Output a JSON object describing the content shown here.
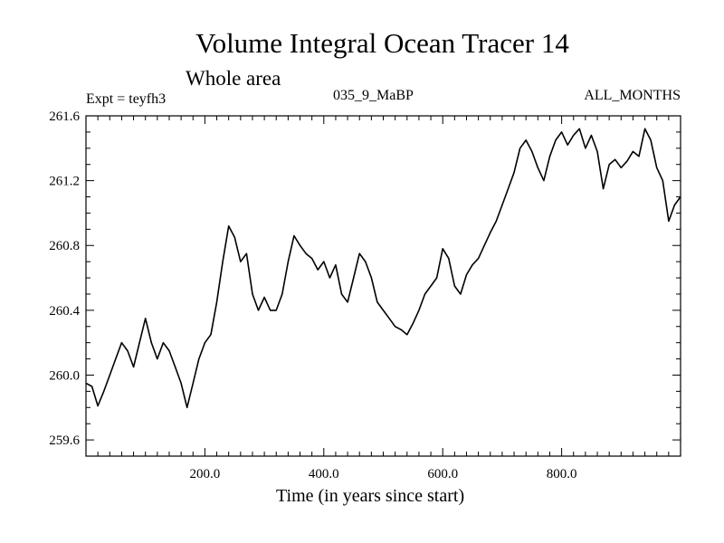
{
  "chart_data": {
    "type": "line",
    "title": "Volume Integral Ocean Tracer 14",
    "subtitle": "Whole area",
    "experiment_label": "Expt = teyfh3",
    "run_label": "035_9_MaBP",
    "period_label": "ALL_MONTHS",
    "xlabel": "Time (in years since start)",
    "ylabel": "",
    "xlim": [
      0,
      1000
    ],
    "ylim": [
      259.5,
      261.6
    ],
    "x_ticks": [
      200,
      400,
      600,
      800
    ],
    "x_tick_labels": [
      "200.0",
      "400.0",
      "600.0",
      "800.0"
    ],
    "y_ticks": [
      259.6,
      260.0,
      260.4,
      260.8,
      261.2,
      261.6
    ],
    "y_tick_labels": [
      "259.6",
      "260.0",
      "260.4",
      "260.8",
      "261.2",
      "261.6"
    ],
    "series": [
      {
        "name": "Volume Integral Ocean Tracer 14",
        "color": "#000000",
        "x": [
          0,
          10,
          20,
          30,
          40,
          50,
          60,
          70,
          80,
          90,
          100,
          110,
          120,
          130,
          140,
          150,
          160,
          170,
          180,
          190,
          200,
          210,
          220,
          230,
          240,
          250,
          260,
          270,
          280,
          290,
          300,
          310,
          320,
          330,
          340,
          350,
          360,
          370,
          380,
          390,
          400,
          410,
          420,
          430,
          440,
          450,
          460,
          470,
          480,
          490,
          500,
          510,
          520,
          530,
          540,
          550,
          560,
          570,
          580,
          590,
          600,
          610,
          620,
          630,
          640,
          650,
          660,
          670,
          680,
          690,
          700,
          710,
          720,
          730,
          740,
          750,
          760,
          770,
          780,
          790,
          800,
          810,
          820,
          830,
          840,
          850,
          860,
          870,
          880,
          890,
          900,
          910,
          920,
          930,
          940,
          950,
          960,
          970,
          980,
          990,
          1000
        ],
        "values": [
          259.95,
          259.93,
          259.81,
          259.9,
          260.0,
          260.1,
          260.2,
          260.15,
          260.05,
          260.2,
          260.35,
          260.2,
          260.1,
          260.2,
          260.15,
          260.05,
          259.95,
          259.8,
          259.95,
          260.1,
          260.2,
          260.25,
          260.45,
          260.7,
          260.92,
          260.85,
          260.7,
          260.75,
          260.5,
          260.4,
          260.48,
          260.4,
          260.4,
          260.5,
          260.7,
          260.86,
          260.8,
          260.75,
          260.72,
          260.65,
          260.7,
          260.6,
          260.68,
          260.5,
          260.45,
          260.6,
          260.75,
          260.7,
          260.6,
          260.45,
          260.4,
          260.35,
          260.3,
          260.28,
          260.25,
          260.32,
          260.4,
          260.5,
          260.55,
          260.6,
          260.78,
          260.72,
          260.55,
          260.5,
          260.62,
          260.68,
          260.72,
          260.8,
          260.88,
          260.95,
          261.05,
          261.15,
          261.25,
          261.4,
          261.45,
          261.38,
          261.28,
          261.2,
          261.35,
          261.45,
          261.5,
          261.42,
          261.48,
          261.52,
          261.4,
          261.48,
          261.38,
          261.15,
          261.3,
          261.33,
          261.28,
          261.32,
          261.38,
          261.35,
          261.52,
          261.45,
          261.28,
          261.2,
          260.95,
          261.05,
          261.1
        ]
      }
    ]
  }
}
